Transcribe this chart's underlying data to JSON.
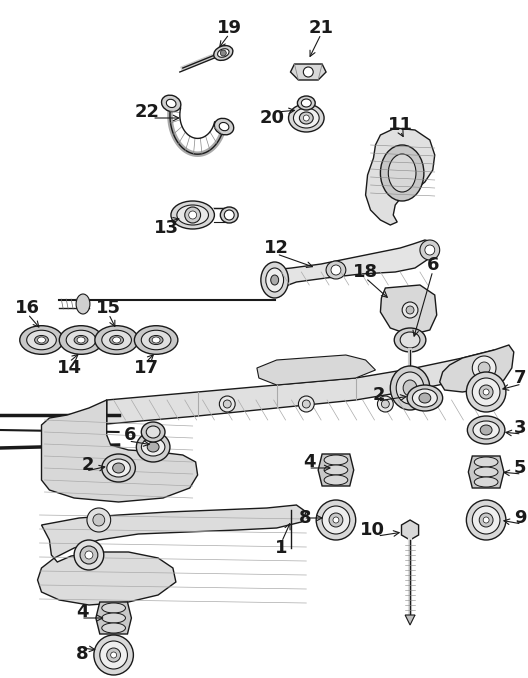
{
  "bg": "#ffffff",
  "lc": "#1a1a1a",
  "fw": 5.28,
  "fh": 6.78,
  "dpi": 100,
  "fs": 13,
  "lw": 1.0
}
